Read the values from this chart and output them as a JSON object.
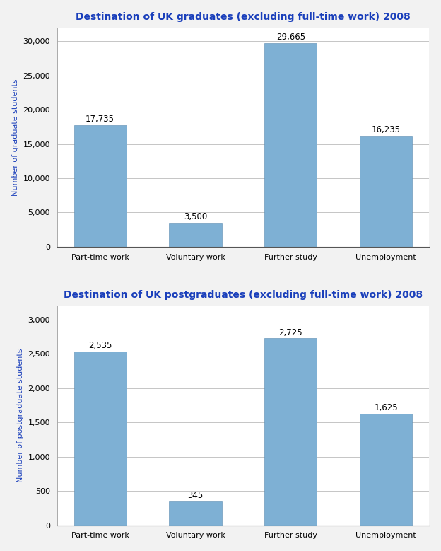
{
  "grad_title": "Destination of UK graduates (excluding full-time work) 2008",
  "postgrad_title": "Destination of UK postgraduates (excluding full-time work) 2008",
  "categories": [
    "Part-time work",
    "Voluntary work",
    "Further study",
    "Unemployment"
  ],
  "grad_values": [
    17735,
    3500,
    29665,
    16235
  ],
  "grad_labels": [
    "17,735",
    "3,500",
    "29,665",
    "16,235"
  ],
  "postgrad_values": [
    2535,
    345,
    2725,
    1625
  ],
  "postgrad_labels": [
    "2,535",
    "345",
    "2,725",
    "1,625"
  ],
  "bar_color": "#7EB0D4",
  "title_color": "#1A3FBB",
  "ylabel_grad": "Number of graduate students",
  "ylabel_postgrad": "Number of postgraduate students",
  "grad_ylim": [
    0,
    32000
  ],
  "grad_yticks": [
    0,
    5000,
    10000,
    15000,
    20000,
    25000,
    30000
  ],
  "postgrad_ylim": [
    0,
    3200
  ],
  "postgrad_yticks": [
    0,
    500,
    1000,
    1500,
    2000,
    2500,
    3000
  ],
  "bg_color": "#FFFFFF",
  "fig_bg_color": "#F2F2F2",
  "label_fontsize": 8.5,
  "title_fontsize": 10,
  "axis_label_fontsize": 8,
  "tick_fontsize": 8,
  "bar_width": 0.55
}
